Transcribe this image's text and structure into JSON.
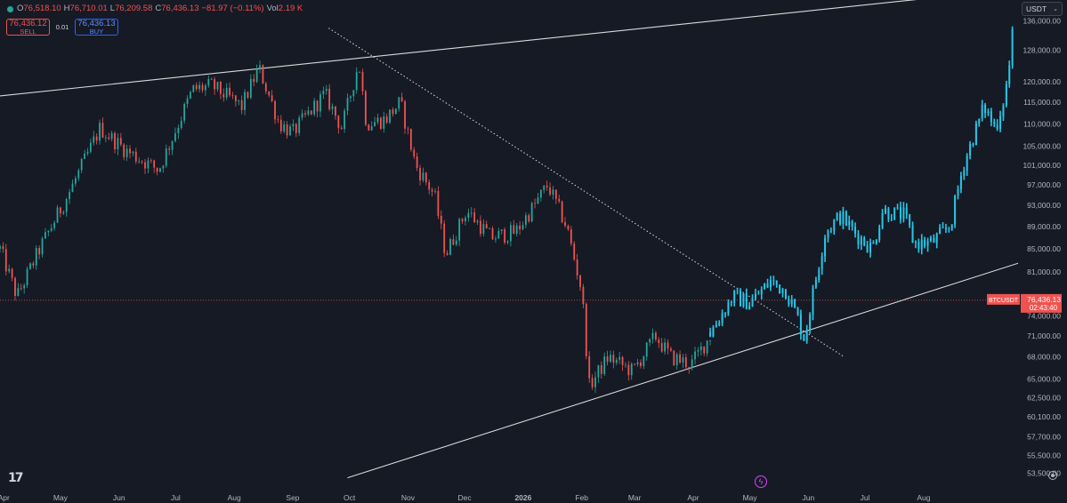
{
  "legend": {
    "open_label": "O",
    "open": "76,518.10",
    "high_label": "H",
    "high": "76,710.01",
    "low_label": "L",
    "low": "76,209.58",
    "close_label": "C",
    "close": "76,436.13",
    "change": "−81.97 (−0.11%)",
    "vol_label": "Vol",
    "vol": "2.19 K"
  },
  "trade": {
    "sell_price": "76,436.12",
    "sell_label": "SELL",
    "spread": "0.01",
    "buy_price": "76,436.13",
    "buy_label": "BUY"
  },
  "currency": "USDT",
  "colors": {
    "background": "#161a25",
    "up": "#26a69a",
    "down": "#ef5350",
    "projection": "#29c5e6",
    "trendline": "#d9d9d9",
    "price_line": "#ef5350",
    "axis_text": "#b2b5be"
  },
  "icons": {
    "logo": "tradingview-logo-icon",
    "bolt": "lightning-bolt-icon",
    "settings": "gear-icon",
    "currency_chevron": "chevron-down-icon",
    "legend_dot": "status-dot-icon"
  },
  "chart_data": {
    "type": "candlestick",
    "symbol": "BTCUSDT",
    "y_scale": "log",
    "ylim": [
      52000,
      142000
    ],
    "y_ticks": [
      "136,000.00",
      "128,000.00",
      "120,000.00",
      "115,000.00",
      "110,000.00",
      "105,000.00",
      "101,000.00",
      "97,000.00",
      "93,000.00",
      "89,000.00",
      "85,000.00",
      "81,000.00",
      "77,000.00",
      "74,000.00",
      "71,000.00",
      "68,000.00",
      "65,000.00",
      "62,500.00",
      "60,100.00",
      "57,700.00",
      "55,500.00",
      "53,500.00"
    ],
    "x_ticks": [
      "Apr",
      "May",
      "Jun",
      "Jul",
      "Aug",
      "Sep",
      "Oct",
      "Nov",
      "Dec",
      "2026",
      "Feb",
      "Mar",
      "Apr",
      "May",
      "Jun",
      "Jul",
      "Aug"
    ],
    "x_tick_dates": [
      "2025-04-01",
      "2025-05-01",
      "2025-06-01",
      "2025-07-01",
      "2025-08-01",
      "2025-09-01",
      "2025-10-01",
      "2025-11-01",
      "2025-12-01",
      "2026-01-01",
      "2026-02-01",
      "2026-03-01",
      "2026-04-01",
      "2026-05-01",
      "2026-06-01",
      "2026-07-01",
      "2026-08-01"
    ],
    "x_range": [
      "2025-03-30",
      "2026-09-20"
    ],
    "last_price_label": {
      "symbol": "BTCUSDT",
      "price": "76,436.13",
      "countdown": "02:43:40",
      "value": 76436.13
    },
    "price_path": [
      [
        "2025-03-30",
        85000
      ],
      [
        "2025-04-08",
        77000
      ],
      [
        "2025-04-20",
        85000
      ],
      [
        "2025-05-05",
        95000
      ],
      [
        "2025-05-22",
        109000
      ],
      [
        "2025-06-05",
        104000
      ],
      [
        "2025-06-22",
        100000
      ],
      [
        "2025-07-10",
        118000
      ],
      [
        "2025-07-20",
        119000
      ],
      [
        "2025-08-05",
        114000
      ],
      [
        "2025-08-14",
        123500
      ],
      [
        "2025-08-25",
        110000
      ],
      [
        "2025-09-01",
        108000
      ],
      [
        "2025-09-18",
        117000
      ],
      [
        "2025-09-27",
        109000
      ],
      [
        "2025-10-06",
        125000
      ],
      [
        "2025-10-10",
        110000
      ],
      [
        "2025-10-20",
        111000
      ],
      [
        "2025-10-28",
        115000
      ],
      [
        "2025-11-05",
        101000
      ],
      [
        "2025-11-15",
        95000
      ],
      [
        "2025-11-21",
        84000
      ],
      [
        "2025-12-02",
        92000
      ],
      [
        "2025-12-15",
        87000
      ],
      [
        "2025-12-28",
        88000
      ],
      [
        "2026-01-07",
        93000
      ],
      [
        "2026-01-14",
        97000
      ],
      [
        "2026-01-24",
        89000
      ],
      [
        "2026-02-01",
        78000
      ],
      [
        "2026-02-05",
        64000
      ],
      [
        "2026-02-15",
        68000
      ],
      [
        "2026-02-28",
        66000
      ],
      [
        "2026-03-12",
        71000
      ],
      [
        "2026-03-20",
        68000
      ],
      [
        "2026-03-31",
        67000
      ],
      [
        "2026-04-10",
        71000
      ]
    ],
    "projection_path": [
      [
        "2026-04-10",
        71500
      ],
      [
        "2026-04-22",
        77000
      ],
      [
        "2026-05-01",
        76000
      ],
      [
        "2026-05-12",
        79500
      ],
      [
        "2026-05-20",
        78000
      ],
      [
        "2026-05-26",
        74000
      ],
      [
        "2026-05-30",
        70500
      ],
      [
        "2026-06-03",
        77000
      ],
      [
        "2026-06-10",
        88000
      ],
      [
        "2026-06-18",
        91000
      ],
      [
        "2026-06-28",
        87000
      ],
      [
        "2026-07-05",
        85000
      ],
      [
        "2026-07-10",
        92000
      ],
      [
        "2026-07-22",
        91000
      ],
      [
        "2026-07-27",
        86000
      ],
      [
        "2026-08-05",
        86000
      ],
      [
        "2026-08-15",
        89000
      ],
      [
        "2026-08-22",
        101000
      ],
      [
        "2026-09-02",
        114000
      ],
      [
        "2026-09-08",
        109000
      ],
      [
        "2026-09-12",
        115000
      ],
      [
        "2026-09-15",
        122000
      ],
      [
        "2026-09-18",
        138000
      ]
    ],
    "trendlines": [
      {
        "style": "solid",
        "p1": [
          "2025-03-30",
          116500
        ],
        "p2": [
          "2026-09-15",
          145000
        ]
      },
      {
        "style": "dotted",
        "p1": [
          "2025-09-20",
          134000
        ],
        "p2": [
          "2026-06-20",
          68000
        ]
      },
      {
        "style": "solid",
        "p1": [
          "2025-09-30",
          53000
        ],
        "p2": [
          "2026-09-20",
          82500
        ]
      }
    ],
    "grid": false,
    "legend": "top-left"
  }
}
